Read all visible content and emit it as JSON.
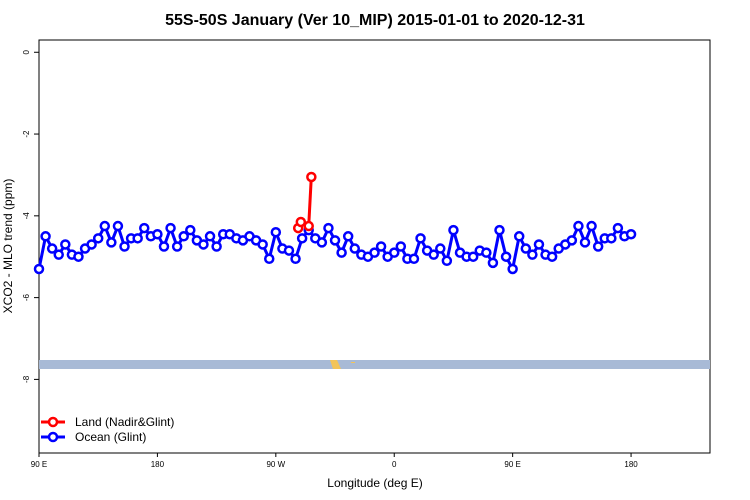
{
  "chart_data": {
    "type": "line",
    "title": "55S-50S January (Ver 10_MIP)   2015-01-01 to 2020-12-31",
    "xlabel": "Longitude (deg E)",
    "ylabel": "XCO2 - MLO trend (ppm)",
    "xlim": [
      90,
      600
    ],
    "ylim": [
      -9.8,
      0.3
    ],
    "x_ticks": [
      {
        "value": 90,
        "label": "90 E"
      },
      {
        "value": 180,
        "label": "180"
      },
      {
        "value": 270,
        "label": "90 W"
      },
      {
        "value": 360,
        "label": "0"
      },
      {
        "value": 450,
        "label": "90 E"
      },
      {
        "value": 540,
        "label": "180"
      }
    ],
    "y_ticks": [
      {
        "value": 0,
        "label": "0"
      },
      {
        "value": -2,
        "label": "-2"
      },
      {
        "value": -4,
        "label": "-4"
      },
      {
        "value": -6,
        "label": "-6"
      },
      {
        "value": -8,
        "label": "-8"
      }
    ],
    "grid": false,
    "legend_position": "bottom-left",
    "latitude_band_color": "#a8bad6",
    "land_marker_color": "#f2c45a",
    "series": [
      {
        "name": "Land (Nadir&Glint)",
        "color": "#ff0000",
        "x": [
          287,
          289,
          295,
          297
        ],
        "y": [
          -4.3,
          -4.15,
          -4.25,
          -3.05
        ]
      },
      {
        "name": "Ocean (Glint)",
        "color": "#0000ff",
        "x": [
          90,
          95,
          100,
          105,
          110,
          115,
          120,
          125,
          130,
          135,
          140,
          145,
          150,
          155,
          160,
          165,
          170,
          175,
          180,
          185,
          190,
          195,
          200,
          205,
          210,
          215,
          220,
          225,
          230,
          235,
          240,
          245,
          250,
          255,
          260,
          265,
          270,
          275,
          280,
          285,
          290,
          295,
          300,
          305,
          310,
          315,
          320,
          325,
          330,
          335,
          340,
          345,
          350,
          355,
          360,
          365,
          370,
          375,
          380,
          385,
          390,
          395,
          400,
          405,
          410,
          415,
          420,
          425,
          430,
          435,
          440,
          445,
          450,
          455,
          460,
          465,
          470,
          475,
          480,
          485,
          490,
          495,
          500,
          505,
          510,
          515,
          520,
          525,
          530,
          535,
          540
        ],
        "y": [
          -5.3,
          -4.5,
          -4.8,
          -4.95,
          -4.7,
          -4.95,
          -5.0,
          -4.8,
          -4.7,
          -4.55,
          -4.25,
          -4.65,
          -4.25,
          -4.75,
          -4.55,
          -4.55,
          -4.3,
          -4.5,
          -4.45,
          -4.75,
          -4.3,
          -4.75,
          -4.5,
          -4.35,
          -4.6,
          -4.7,
          -4.5,
          -4.75,
          -4.45,
          -4.45,
          -4.55,
          -4.6,
          -4.5,
          -4.6,
          -4.7,
          -5.05,
          -4.4,
          -4.8,
          -4.85,
          -5.05,
          -4.55,
          -4.35,
          -4.55,
          -4.65,
          -4.3,
          -4.6,
          -4.9,
          -4.5,
          -4.8,
          -4.95,
          -5.0,
          -4.9,
          -4.75,
          -5.0,
          -4.9,
          -4.75,
          -5.05,
          -5.05,
          -4.55,
          -4.85,
          -4.95,
          -4.8,
          -5.1,
          -4.35,
          -4.9,
          -5.0,
          -5.0,
          -4.85,
          -4.9,
          -5.15,
          -4.35,
          -5.0,
          -5.3,
          -4.5,
          -4.8,
          -4.95,
          -4.7,
          -4.95,
          -5.0,
          -4.8,
          -4.7,
          -4.6,
          -4.25,
          -4.65,
          -4.25,
          -4.75,
          -4.55,
          -4.55,
          -4.3,
          -4.5,
          -4.45
        ]
      }
    ]
  }
}
